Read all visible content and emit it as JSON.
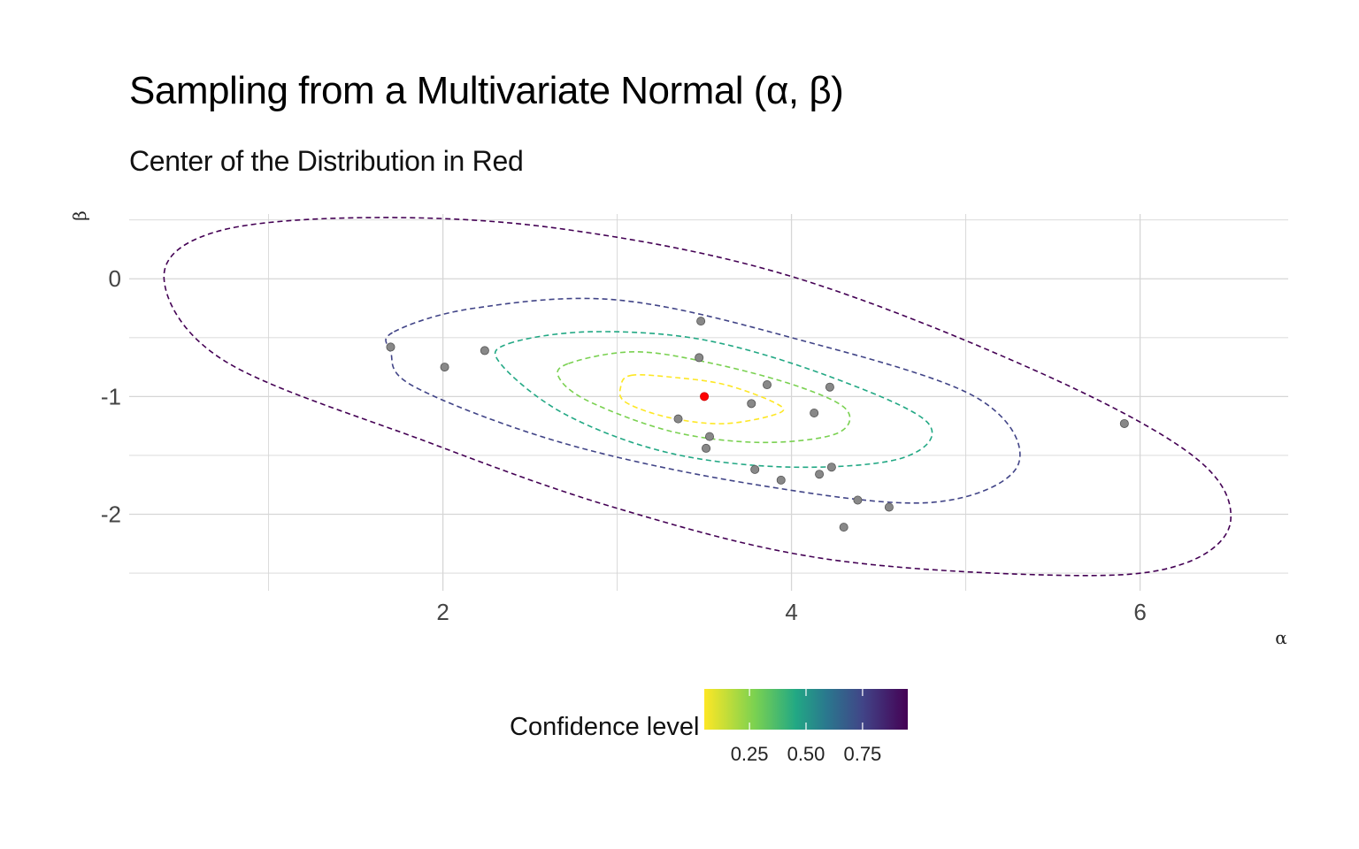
{
  "chart_data": {
    "type": "scatter",
    "title": "Sampling from a Multivariate Normal (α, β)",
    "subtitle": "Center of the Distribution in Red",
    "xlabel": "α",
    "ylabel": "β",
    "xlim": [
      0.2,
      6.85
    ],
    "ylim": [
      -2.65,
      0.55
    ],
    "x_ticks": [
      2,
      4,
      6
    ],
    "y_ticks": [
      0,
      -1,
      -2
    ],
    "grid": true,
    "center": {
      "x": 3.5,
      "y": -1.0,
      "color": "#ff0000"
    },
    "samples": {
      "color": "#888888",
      "points": [
        [
          1.7,
          -0.58
        ],
        [
          2.01,
          -0.75
        ],
        [
          2.24,
          -0.61
        ],
        [
          3.35,
          -1.19
        ],
        [
          3.47,
          -0.67
        ],
        [
          3.48,
          -0.36
        ],
        [
          3.51,
          -1.44
        ],
        [
          3.53,
          -1.34
        ],
        [
          3.77,
          -1.06
        ],
        [
          3.79,
          -1.62
        ],
        [
          3.86,
          -0.9
        ],
        [
          3.94,
          -1.71
        ],
        [
          4.13,
          -1.14
        ],
        [
          4.16,
          -1.66
        ],
        [
          4.22,
          -0.92
        ],
        [
          4.23,
          -1.6
        ],
        [
          4.3,
          -2.11
        ],
        [
          4.38,
          -1.88
        ],
        [
          4.56,
          -1.94
        ],
        [
          5.91,
          -1.23
        ]
      ]
    },
    "ellipses": [
      {
        "level": 0.1,
        "color": "#fde725",
        "points": [
          [
            3.08,
            -0.82
          ],
          [
            3.34,
            -0.84
          ],
          [
            3.62,
            -0.9
          ],
          [
            3.9,
            -1.05
          ],
          [
            3.93,
            -1.14
          ],
          [
            3.62,
            -1.23
          ],
          [
            3.3,
            -1.18
          ],
          [
            3.05,
            -1.05
          ],
          [
            3.02,
            -0.92
          ]
        ]
      },
      {
        "level": 0.3,
        "color": "#7ad151",
        "points": [
          [
            2.72,
            -0.72
          ],
          [
            3.1,
            -0.62
          ],
          [
            3.55,
            -0.72
          ],
          [
            4.05,
            -0.92
          ],
          [
            4.32,
            -1.12
          ],
          [
            4.25,
            -1.32
          ],
          [
            3.82,
            -1.39
          ],
          [
            3.32,
            -1.3
          ],
          [
            2.85,
            -1.05
          ],
          [
            2.67,
            -0.85
          ]
        ]
      },
      {
        "level": 0.5,
        "color": "#22a884",
        "points": [
          [
            2.38,
            -0.55
          ],
          [
            2.85,
            -0.45
          ],
          [
            3.5,
            -0.52
          ],
          [
            4.2,
            -0.82
          ],
          [
            4.78,
            -1.22
          ],
          [
            4.64,
            -1.52
          ],
          [
            4.0,
            -1.6
          ],
          [
            3.3,
            -1.48
          ],
          [
            2.7,
            -1.15
          ],
          [
            2.33,
            -0.72
          ]
        ]
      },
      {
        "level": 0.75,
        "color": "#414487",
        "points": [
          [
            1.72,
            -0.45
          ],
          [
            2.18,
            -0.25
          ],
          [
            3.0,
            -0.18
          ],
          [
            4.0,
            -0.5
          ],
          [
            5.05,
            -1.0
          ],
          [
            5.3,
            -1.58
          ],
          [
            4.8,
            -1.9
          ],
          [
            3.8,
            -1.75
          ],
          [
            2.7,
            -1.4
          ],
          [
            1.84,
            -0.92
          ],
          [
            1.7,
            -0.62
          ]
        ]
      },
      {
        "level": 0.95,
        "color": "#440154",
        "points": [
          [
            0.7,
            0.4
          ],
          [
            1.6,
            0.52
          ],
          [
            2.7,
            0.42
          ],
          [
            4.0,
            0.02
          ],
          [
            5.4,
            -0.78
          ],
          [
            6.3,
            -1.5
          ],
          [
            6.52,
            -2.05
          ],
          [
            6.25,
            -2.42
          ],
          [
            5.6,
            -2.52
          ],
          [
            4.2,
            -2.38
          ],
          [
            3.0,
            -1.95
          ],
          [
            1.9,
            -1.38
          ],
          [
            0.75,
            -0.7
          ],
          [
            0.4,
            0.0
          ]
        ]
      }
    ],
    "legend": {
      "title": "Confidence level",
      "position": "bottom",
      "colors": [
        "#fde725",
        "#7ad151",
        "#22a884",
        "#2a788e",
        "#414487",
        "#440154"
      ],
      "range": [
        0.05,
        0.95
      ],
      "tick_values": [
        0.25,
        0.5,
        0.75
      ],
      "tick_labels": [
        "0.25",
        "0.50",
        "0.75"
      ]
    }
  }
}
